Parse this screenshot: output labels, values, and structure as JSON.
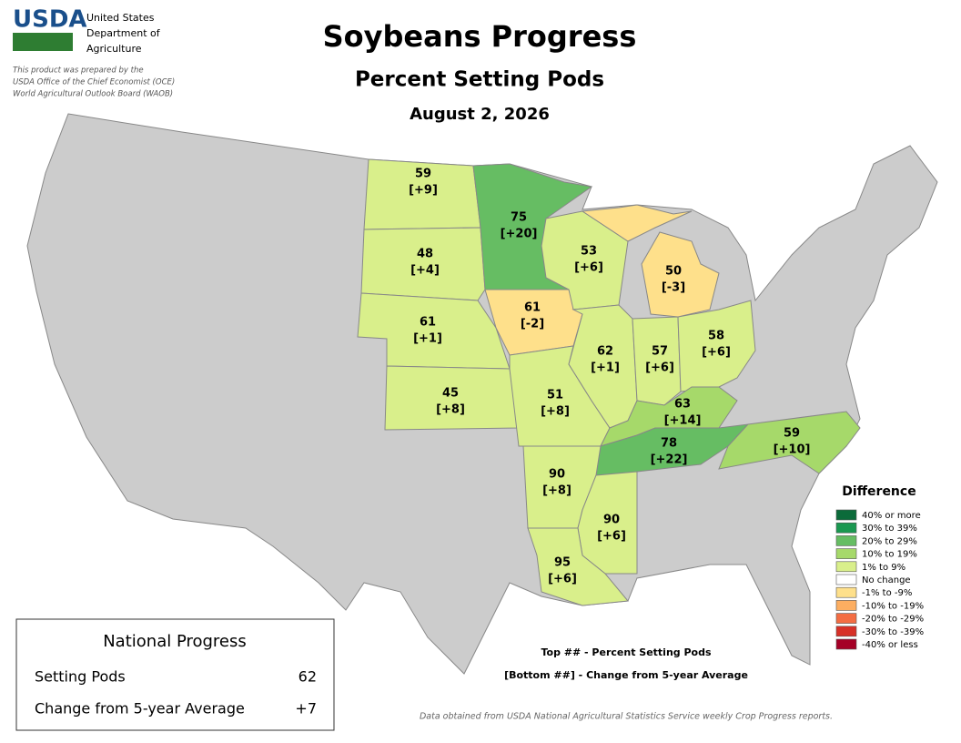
{
  "header": {
    "logo": "USDA",
    "agency": [
      "United States",
      "Department of",
      "Agriculture"
    ],
    "disclaimer": [
      "This product was prepared by the",
      "USDA Office of the Chief Economist (OCE)",
      "World Agricultural Outlook Board (WAOB)"
    ],
    "title": "Soybeans Progress",
    "subtitle": "Percent Setting Pods",
    "date": "August 2, 2026"
  },
  "states": [
    {
      "top": "59",
      "bottom": "[+9]",
      "color": "#d9ef8b"
    },
    {
      "top": "48",
      "bottom": "[+4]",
      "color": "#d9ef8b"
    },
    {
      "top": "61",
      "bottom": "[+1]",
      "color": "#d9ef8b"
    },
    {
      "top": "45",
      "bottom": "[+8]",
      "color": "#d9ef8b"
    },
    {
      "top": "75",
      "bottom": "[+20]",
      "color": "#66bd63"
    },
    {
      "top": "61",
      "bottom": "[-2]",
      "color": "#fee08b"
    },
    {
      "top": "51",
      "bottom": "[+8]",
      "color": "#d9ef8b"
    },
    {
      "top": "53",
      "bottom": "[+6]",
      "color": "#d9ef8b"
    },
    {
      "top": "62",
      "bottom": "[+1]",
      "color": "#d9ef8b"
    },
    {
      "top": "57",
      "bottom": "[+6]",
      "color": "#d9ef8b"
    },
    {
      "top": "58",
      "bottom": "[+6]",
      "color": "#d9ef8b"
    },
    {
      "top": "50",
      "bottom": "[-3]",
      "color": "#fee08b"
    },
    {
      "top": "63",
      "bottom": "[+14]",
      "color": "#a6d96a"
    },
    {
      "top": "78",
      "bottom": "[+22]",
      "color": "#66bd63"
    },
    {
      "top": "59",
      "bottom": "[+10]",
      "color": "#a6d96a"
    },
    {
      "top": "90",
      "bottom": "[+8]",
      "color": "#d9ef8b"
    },
    {
      "top": "90",
      "bottom": "[+6]",
      "color": "#d9ef8b"
    },
    {
      "top": "95",
      "bottom": "[+6]",
      "color": "#d9ef8b"
    }
  ],
  "legend": {
    "title": "Difference",
    "items": [
      {
        "color": "#0b6b3a",
        "label": "40% or more"
      },
      {
        "color": "#1a9850",
        "label": "30% to 39%"
      },
      {
        "color": "#66bd63",
        "label": "20% to 29%"
      },
      {
        "color": "#a6d96a",
        "label": "10% to 19%"
      },
      {
        "color": "#d9ef8b",
        "label": "1% to 9%"
      },
      {
        "color": "#ffffff",
        "label": "No change"
      },
      {
        "color": "#fee08b",
        "label": "-1% to -9%"
      },
      {
        "color": "#fdae61",
        "label": "-10% to -19%"
      },
      {
        "color": "#f46d43",
        "label": "-20% to -29%"
      },
      {
        "color": "#d73027",
        "label": "-30% to -39%"
      },
      {
        "color": "#a50026",
        "label": "-40% or less"
      }
    ]
  },
  "key": [
    "Top ## - Percent Setting Pods",
    "[Bottom ##] - Change from 5-year Average"
  ],
  "national": {
    "title": "National Progress",
    "rows": [
      [
        "Setting Pods",
        "62"
      ],
      [
        "Change from 5-year Average",
        "+7"
      ]
    ]
  },
  "source": "Data obtained from USDA National Agricultural Statistics Service weekly Crop Progress reports."
}
